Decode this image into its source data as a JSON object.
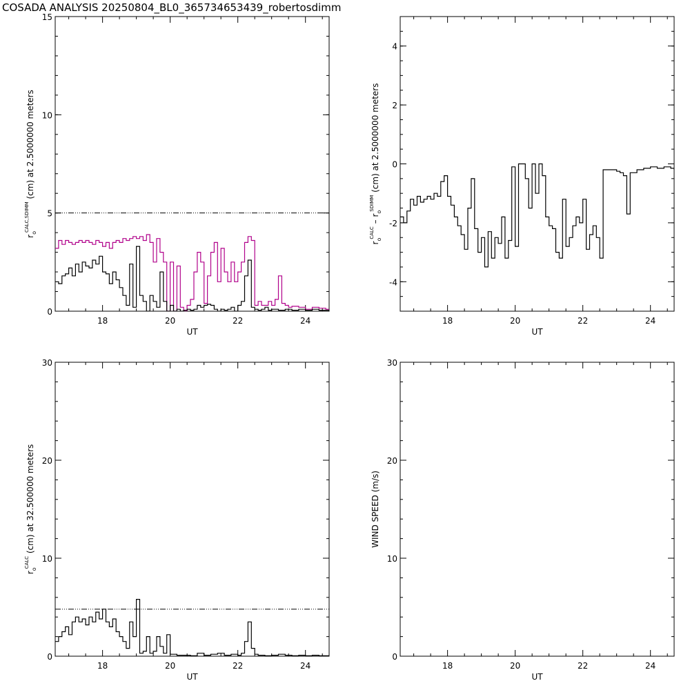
{
  "title": "COSADA ANALYSIS 20250804_BL0_365734653439_robertosdimm",
  "colors": {
    "black": "#000000",
    "magenta": "#b0008a"
  },
  "chart_data": [
    {
      "type": "line",
      "xlabel": "UT",
      "ylabel_parts": [
        "r",
        "o",
        "CALC,SDIMM",
        "(cm)  at  2.5000000 meters"
      ],
      "xlim": [
        16.6,
        24.7
      ],
      "ylim": [
        0,
        15
      ],
      "xticks": [
        "18",
        "20",
        "22",
        "24"
      ],
      "yticks": [
        "0",
        "5",
        "10",
        "15"
      ],
      "reference_lines": [
        {
          "y": 5,
          "style": "dash-dot-dot"
        }
      ],
      "series": [
        {
          "color": "#b0008a",
          "x": [
            16.6,
            16.7,
            16.8,
            16.9,
            17.0,
            17.1,
            17.2,
            17.3,
            17.4,
            17.5,
            17.6,
            17.7,
            17.8,
            17.9,
            18.0,
            18.1,
            18.2,
            18.3,
            18.4,
            18.5,
            18.6,
            18.7,
            18.8,
            18.9,
            19.0,
            19.1,
            19.2,
            19.3,
            19.4,
            19.5,
            19.6,
            19.7,
            19.8,
            19.9,
            20.0,
            20.1,
            20.2,
            20.3,
            20.4,
            20.5,
            20.6,
            20.7,
            20.8,
            20.9,
            21.0,
            21.1,
            21.2,
            21.3,
            21.4,
            21.5,
            21.6,
            21.7,
            21.8,
            21.9,
            22.0,
            22.1,
            22.2,
            22.3,
            22.4,
            22.5,
            22.6,
            22.7,
            22.8,
            22.9,
            23.0,
            23.1,
            23.2,
            23.3,
            23.4,
            23.5,
            23.6,
            23.8,
            24.0,
            24.2,
            24.4,
            24.6,
            24.7
          ],
          "y": [
            3.2,
            3.6,
            3.4,
            3.6,
            3.5,
            3.4,
            3.5,
            3.6,
            3.5,
            3.6,
            3.5,
            3.4,
            3.6,
            3.5,
            3.3,
            3.5,
            3.2,
            3.5,
            3.6,
            3.5,
            3.7,
            3.6,
            3.7,
            3.8,
            3.7,
            3.8,
            3.6,
            3.9,
            3.5,
            2.5,
            3.7,
            3.0,
            2.5,
            0,
            2.5,
            0,
            2.3,
            0.2,
            0,
            0.3,
            0.6,
            2.0,
            3.0,
            2.5,
            0.4,
            1.8,
            3.0,
            3.5,
            1.5,
            3.2,
            2.0,
            1.5,
            2.5,
            1.5,
            2.0,
            2.5,
            3.5,
            3.8,
            3.6,
            0.3,
            0.5,
            0.3,
            0.3,
            0.5,
            0.3,
            0.6,
            1.8,
            0.4,
            0.3,
            0.2,
            0.25,
            0.2,
            0.1,
            0.2,
            0.15,
            0.1,
            0.1
          ]
        },
        {
          "color": "#000000",
          "x": [
            16.6,
            16.7,
            16.8,
            16.9,
            17.0,
            17.1,
            17.2,
            17.3,
            17.4,
            17.5,
            17.6,
            17.7,
            17.8,
            17.9,
            18.0,
            18.1,
            18.2,
            18.3,
            18.4,
            18.5,
            18.6,
            18.7,
            18.8,
            18.9,
            19.0,
            19.1,
            19.2,
            19.3,
            19.4,
            19.5,
            19.6,
            19.7,
            19.8,
            19.9,
            20.0,
            20.1,
            20.2,
            20.3,
            20.4,
            20.5,
            20.6,
            20.7,
            20.8,
            20.9,
            21.0,
            21.1,
            21.2,
            21.3,
            21.4,
            21.5,
            21.6,
            21.7,
            21.8,
            21.9,
            22.0,
            22.1,
            22.2,
            22.3,
            22.4,
            22.5,
            22.6,
            22.7,
            22.8,
            22.9,
            23.0,
            23.2,
            23.4,
            23.6,
            23.8,
            24.0,
            24.2,
            24.4,
            24.6,
            24.7
          ],
          "y": [
            1.5,
            1.4,
            1.8,
            1.9,
            2.2,
            1.8,
            2.4,
            2.0,
            2.5,
            2.3,
            2.2,
            2.6,
            2.4,
            2.8,
            2.0,
            1.9,
            1.4,
            2.0,
            1.6,
            1.2,
            0.8,
            0.3,
            2.4,
            0.2,
            3.3,
            0.8,
            0.5,
            0,
            0.8,
            0.5,
            0.2,
            2.0,
            0.5,
            0,
            0.3,
            0,
            0.1,
            0,
            0.05,
            0.1,
            0.05,
            0.1,
            0.3,
            0.2,
            0.3,
            0.35,
            0.3,
            0.1,
            0,
            0.1,
            0.05,
            0.1,
            0.2,
            0,
            0.3,
            0.5,
            1.8,
            2.6,
            0.2,
            0.1,
            0.05,
            0.1,
            0.2,
            0.05,
            0.1,
            0.05,
            0.1,
            0.05,
            0.1,
            0.05,
            0.1,
            0.05,
            0.05,
            0.05
          ]
        }
      ]
    },
    {
      "type": "line",
      "xlabel": "UT",
      "ylabel_parts": [
        "r",
        "o",
        "CALC",
        "– r",
        "o",
        "SDIMM",
        "(cm)  at  2.5000000  meters"
      ],
      "xlim": [
        16.6,
        24.7
      ],
      "ylim": [
        -5,
        5
      ],
      "xticks": [
        "18",
        "20",
        "22",
        "24"
      ],
      "yticks": [
        "-4",
        "-2",
        "0",
        "2",
        "4"
      ],
      "series": [
        {
          "color": "#000000",
          "x": [
            16.6,
            16.7,
            16.8,
            16.9,
            17.0,
            17.1,
            17.2,
            17.3,
            17.4,
            17.5,
            17.6,
            17.7,
            17.8,
            17.9,
            18.0,
            18.1,
            18.2,
            18.3,
            18.4,
            18.5,
            18.6,
            18.7,
            18.8,
            18.9,
            19.0,
            19.1,
            19.2,
            19.3,
            19.4,
            19.5,
            19.6,
            19.7,
            19.8,
            19.9,
            20.0,
            20.1,
            20.2,
            20.3,
            20.4,
            20.5,
            20.6,
            20.7,
            20.8,
            20.9,
            21.0,
            21.1,
            21.2,
            21.3,
            21.4,
            21.5,
            21.6,
            21.7,
            21.8,
            21.9,
            22.0,
            22.1,
            22.2,
            22.3,
            22.4,
            22.5,
            22.6,
            22.8,
            23.0,
            23.1,
            23.2,
            23.3,
            23.4,
            23.6,
            23.8,
            24.0,
            24.2,
            24.4,
            24.6,
            24.7
          ],
          "y": [
            -1.8,
            -2.0,
            -1.6,
            -1.2,
            -1.4,
            -1.1,
            -1.3,
            -1.2,
            -1.1,
            -1.2,
            -1.0,
            -1.1,
            -0.6,
            -0.4,
            -1.1,
            -1.4,
            -1.8,
            -2.1,
            -2.4,
            -2.9,
            -1.5,
            -0.5,
            -2.2,
            -3.0,
            -2.5,
            -3.5,
            -2.3,
            -3.2,
            -2.5,
            -2.7,
            -1.8,
            -3.2,
            -2.6,
            -0.1,
            -2.8,
            0,
            0,
            -0.5,
            -1.5,
            0,
            -1.0,
            0,
            -0.4,
            -1.8,
            -2.1,
            -2.2,
            -3.0,
            -3.2,
            -1.2,
            -2.8,
            -2.5,
            -2.1,
            -1.8,
            -2.0,
            -1.2,
            -2.9,
            -2.4,
            -2.1,
            -2.5,
            -3.2,
            -0.2,
            -0.2,
            -0.25,
            -0.3,
            -0.4,
            -1.7,
            -0.3,
            -0.2,
            -0.15,
            -0.1,
            -0.15,
            -0.1,
            -0.15,
            -0.2
          ]
        }
      ]
    },
    {
      "type": "line",
      "xlabel": "UT",
      "ylabel_parts": [
        "r",
        "o",
        "CALC",
        "(cm)  at  32.500000  meters"
      ],
      "xlim": [
        16.6,
        24.7
      ],
      "ylim": [
        0,
        30
      ],
      "xticks": [
        "18",
        "20",
        "22",
        "24"
      ],
      "yticks": [
        "0",
        "10",
        "20",
        "30"
      ],
      "reference_lines": [
        {
          "y": 4.8,
          "style": "dash-dot-dot"
        }
      ],
      "series": [
        {
          "color": "#000000",
          "x": [
            16.6,
            16.7,
            16.8,
            16.9,
            17.0,
            17.1,
            17.2,
            17.3,
            17.4,
            17.5,
            17.6,
            17.7,
            17.8,
            17.9,
            18.0,
            18.1,
            18.2,
            18.3,
            18.4,
            18.5,
            18.6,
            18.7,
            18.8,
            18.9,
            19.0,
            19.1,
            19.2,
            19.3,
            19.4,
            19.5,
            19.6,
            19.7,
            19.8,
            19.9,
            20.0,
            20.2,
            20.4,
            20.6,
            20.8,
            21.0,
            21.2,
            21.4,
            21.6,
            21.8,
            22.0,
            22.1,
            22.2,
            22.3,
            22.4,
            22.5,
            22.6,
            22.8,
            23.0,
            23.2,
            23.4,
            23.6,
            23.8,
            24.0,
            24.2,
            24.4,
            24.6,
            24.7
          ],
          "y": [
            1.5,
            2.0,
            2.5,
            3.0,
            2.2,
            3.5,
            4.0,
            3.5,
            3.8,
            3.2,
            4.0,
            3.5,
            4.5,
            3.8,
            4.8,
            3.5,
            3.0,
            3.8,
            2.5,
            2.0,
            1.5,
            0.8,
            3.5,
            2.0,
            5.8,
            0.3,
            0.5,
            2.0,
            0.3,
            0.5,
            2.0,
            1.0,
            0.3,
            2.2,
            0.2,
            0.1,
            0.1,
            0.05,
            0.3,
            0.1,
            0.2,
            0.3,
            0.1,
            0.2,
            0.1,
            0.3,
            1.5,
            3.5,
            0.8,
            0.2,
            0.1,
            0.05,
            0.1,
            0.2,
            0.1,
            0.05,
            0.1,
            0.05,
            0.1,
            0.05,
            0.05,
            0.05
          ]
        }
      ]
    },
    {
      "type": "line",
      "xlabel": "UT",
      "ylabel": "WIND SPEED (m/s)",
      "xlim": [
        16.6,
        24.7
      ],
      "ylim": [
        0,
        30
      ],
      "xticks": [
        "18",
        "20",
        "22",
        "24"
      ],
      "yticks": [
        "0",
        "10",
        "20",
        "30"
      ],
      "series": []
    }
  ]
}
